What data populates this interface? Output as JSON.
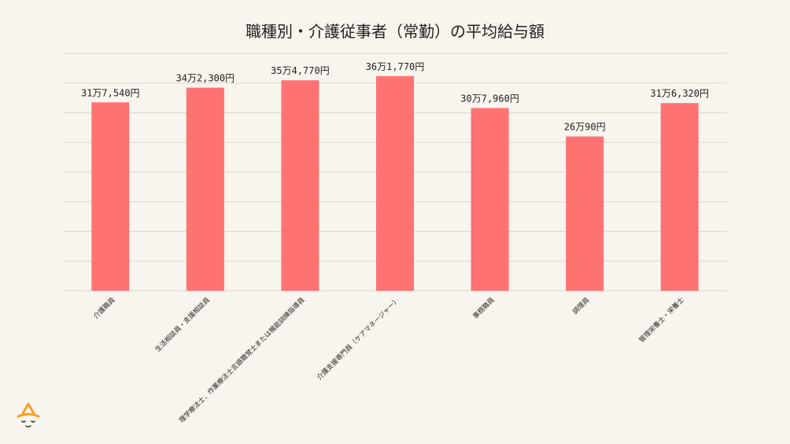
{
  "chart_data": {
    "type": "bar",
    "title": "職種別・介護従事者（常勤）の平均給与額",
    "categories": [
      "介護職員",
      "生活相談員・支援相談員",
      "理学療法士、作業療法士言語聴覚士または機能訓練指導員",
      "介護支援専門員（ケアマネージャー）",
      "事務職員",
      "調理員",
      "管理栄養士・栄養士"
    ],
    "values": [
      317540,
      342300,
      354770,
      361770,
      307960,
      260090,
      316320
    ],
    "data_labels": [
      "31万7,540円",
      "34万2,300円",
      "35万4,770円",
      "36万1,770円",
      "30万7,960円",
      "26万90円",
      "31万6,320円"
    ],
    "ylim": [
      0,
      400000
    ],
    "grid": true,
    "y_tick_labels_shown": false,
    "bar_color": "#ff7272",
    "background_color": "#f8f4ee",
    "logo_color": "#f4a223"
  }
}
